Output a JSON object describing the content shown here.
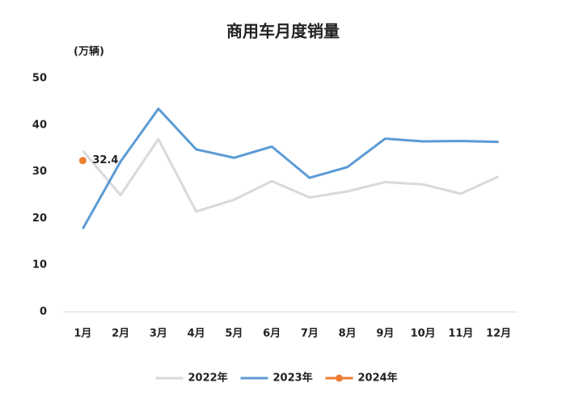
{
  "chart_data": {
    "type": "line",
    "title": "商用车月度销量",
    "y_label": "(万辆)",
    "categories": [
      "1月",
      "2月",
      "3月",
      "4月",
      "5月",
      "6月",
      "7月",
      "8月",
      "9月",
      "10月",
      "11月",
      "12月"
    ],
    "series": [
      {
        "name": "2022年",
        "color": "#d9d9d9",
        "values": [
          34.5,
          25,
          37,
          21.5,
          24,
          28,
          24.5,
          25.8,
          27.8,
          27.3,
          25.3,
          29
        ]
      },
      {
        "name": "2023年",
        "color": "#5b9bd5",
        "values": [
          17.8,
          32.2,
          43.5,
          34.8,
          33,
          35.4,
          28.7,
          31,
          37.1,
          36.5,
          36.6,
          36.4
        ]
      },
      {
        "name": "2024年",
        "color": "#ed7d31",
        "values": [
          32.4,
          null,
          null,
          null,
          null,
          null,
          null,
          null,
          null,
          null,
          null,
          null
        ]
      }
    ],
    "ylim": [
      0,
      50
    ],
    "yticks": [
      0,
      10,
      20,
      30,
      40,
      50
    ],
    "grid": false,
    "legend": "bottom"
  }
}
